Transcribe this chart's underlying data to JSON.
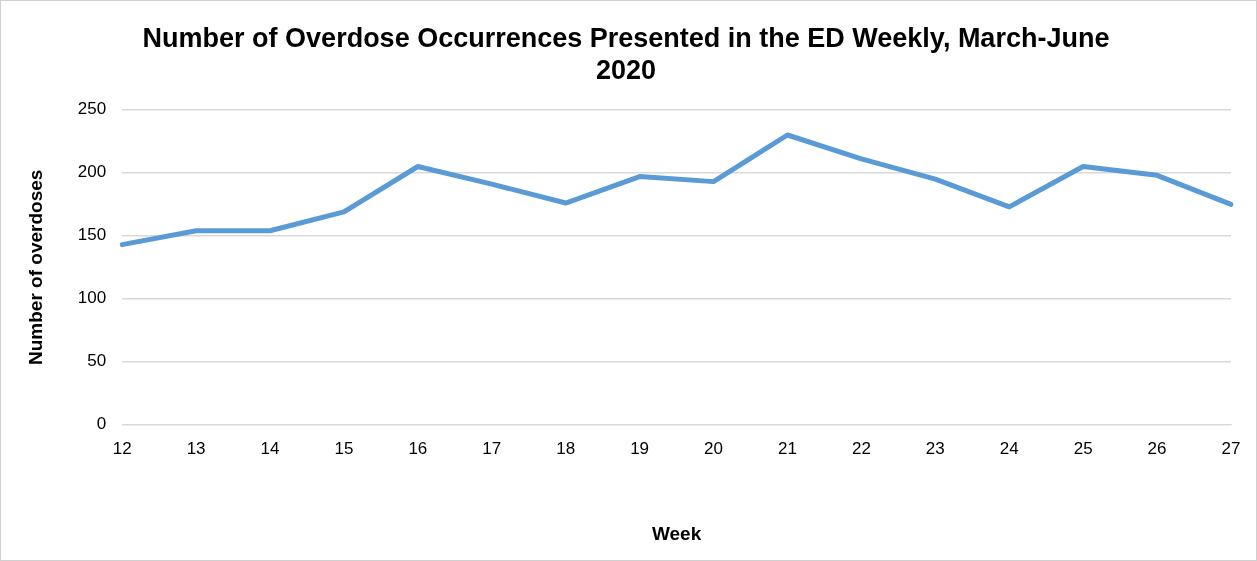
{
  "chart_data": {
    "type": "line",
    "title": "Number of Overdose Occurrences Presented in the ED Weekly, March-June 2020",
    "xlabel": "Week",
    "ylabel": "Number of overdoses",
    "categories": [
      "12",
      "13",
      "14",
      "15",
      "16",
      "17",
      "18",
      "19",
      "20",
      "21",
      "22",
      "23",
      "24",
      "25",
      "26",
      "27"
    ],
    "series": [
      {
        "color": "#5b9bd5",
        "values": [
          143,
          154,
          154,
          169,
          205,
          191,
          176,
          197,
          193,
          230,
          211,
          195,
          173,
          205,
          198,
          175
        ]
      }
    ],
    "ylim": [
      0,
      250
    ],
    "yticks": [
      0,
      50,
      100,
      150,
      200,
      250
    ],
    "grid": "y",
    "legend": false,
    "marker": "none",
    "line_style": "solid"
  }
}
